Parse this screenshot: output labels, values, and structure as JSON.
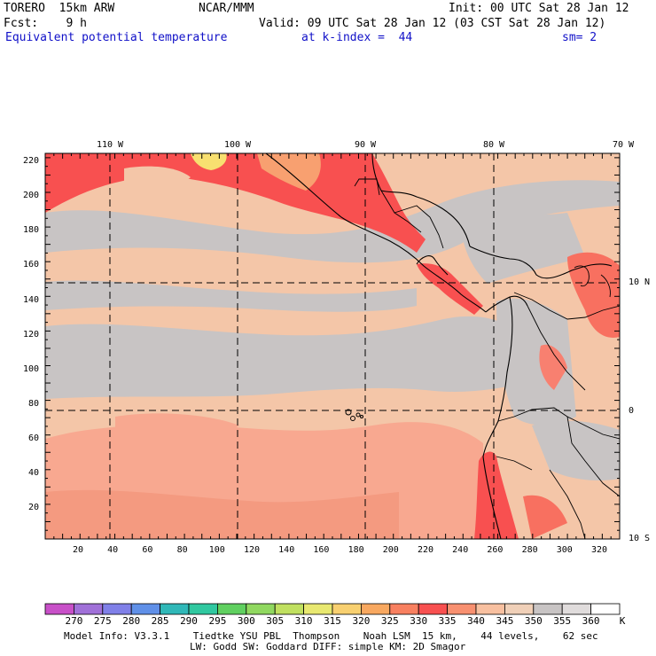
{
  "header": {
    "model": "TORERO  15km ARW",
    "org": "NCAR/MMM",
    "init": "Init: 00 UTC Sat 28 Jan 12",
    "fcst": "Fcst:    9 h",
    "valid": "Valid: 09 UTC Sat 28 Jan 12 (03 CST Sat 28 Jan 12)",
    "field": "Equivalent potential temperature",
    "kindex": "at k-index =  44",
    "smooth": "sm= 2"
  },
  "longitude_labels": [
    "110 W",
    "100 W",
    "90 W",
    "80 W",
    "70 W"
  ],
  "latitude_labels": [
    "10 N",
    "0",
    "10 S"
  ],
  "y_ticks": [
    "220",
    "200",
    "180",
    "160",
    "140",
    "120",
    "100",
    "80",
    "60",
    "40",
    "20"
  ],
  "x_ticks": [
    "20",
    "40",
    "60",
    "80",
    "100",
    "120",
    "140",
    "160",
    "180",
    "200",
    "220",
    "240",
    "260",
    "280",
    "300",
    "320"
  ],
  "colorbar": {
    "labels": [
      "270",
      "275",
      "280",
      "285",
      "290",
      "295",
      "300",
      "305",
      "310",
      "315",
      "320",
      "325",
      "330",
      "335",
      "340",
      "345",
      "350",
      "355",
      "360"
    ],
    "unit": "K",
    "colors": [
      "#c850c8",
      "#a070d8",
      "#8080e8",
      "#6090e8",
      "#30b8b8",
      "#30c8a0",
      "#60d060",
      "#90d860",
      "#c0e060",
      "#e8e870",
      "#f8d070",
      "#f8a860",
      "#f88060",
      "#f85050",
      "#f89070",
      "#f8c0a0",
      "#f0d0b8",
      "#c8c4c4",
      "#e0dcdc",
      "#ffffff"
    ]
  },
  "footer": {
    "line1": "Model Info: V3.3.1    Tiedtke YSU PBL  Thompson    Noah LSM  15 km,    44 levels,    62 sec",
    "line2": "LW: Godd SW: Goddard DIFF: simple KM: 2D Smagor"
  }
}
